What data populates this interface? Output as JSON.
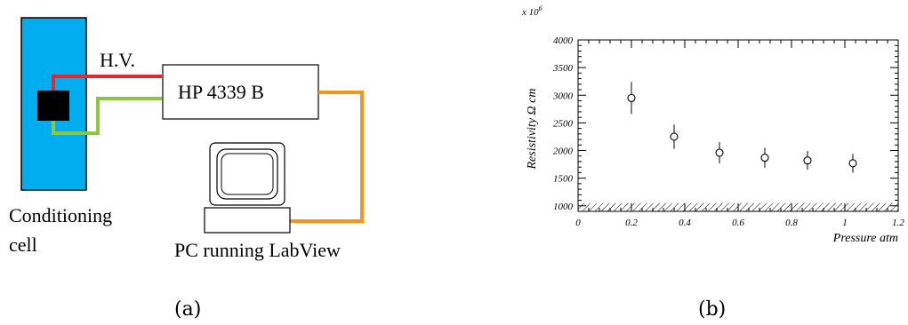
{
  "left_panel": {
    "hv_label": "H.V.",
    "instrument_label": "HP 4339 B",
    "cell_label_line1": "Conditioning",
    "cell_label_line2": "cell",
    "pc_label": "PC running LabView",
    "colors": {
      "cell_fill": "#00aeef",
      "sample": "#000000",
      "hv_wire": "#e8262e",
      "green_wire": "#8dc63f",
      "pc_wire": "#f7941d"
    }
  },
  "captions": {
    "a": "(a)",
    "b": "(b)"
  },
  "chart_data": {
    "type": "scatter",
    "xlabel": "Pressure atm",
    "ylabel": "Resistivity Ω cm",
    "y_multiplier": "x 10",
    "y_multiplier_exp": "6",
    "xlim": [
      0,
      1.2
    ],
    "ylim": [
      900,
      4000
    ],
    "x_ticks": [
      "0",
      "0.2",
      "0.4",
      "0.6",
      "0.8",
      "1",
      "1.2"
    ],
    "y_ticks": [
      "1000",
      "1500",
      "2000",
      "2500",
      "3000",
      "3500",
      "4000"
    ],
    "x_tick_values": [
      0,
      0.2,
      0.4,
      0.6,
      0.8,
      1.0,
      1.2
    ],
    "y_tick_values": [
      1000,
      1500,
      2000,
      2500,
      3000,
      3500,
      4000
    ],
    "points": [
      {
        "x": 0.2,
        "y": 2950,
        "err": 290
      },
      {
        "x": 0.36,
        "y": 2250,
        "err": 220
      },
      {
        "x": 0.53,
        "y": 1960,
        "err": 190
      },
      {
        "x": 0.7,
        "y": 1870,
        "err": 180
      },
      {
        "x": 0.86,
        "y": 1820,
        "err": 170
      },
      {
        "x": 1.03,
        "y": 1770,
        "err": 170
      }
    ],
    "hatched_band": [
      900,
      1050
    ],
    "grid": false
  }
}
